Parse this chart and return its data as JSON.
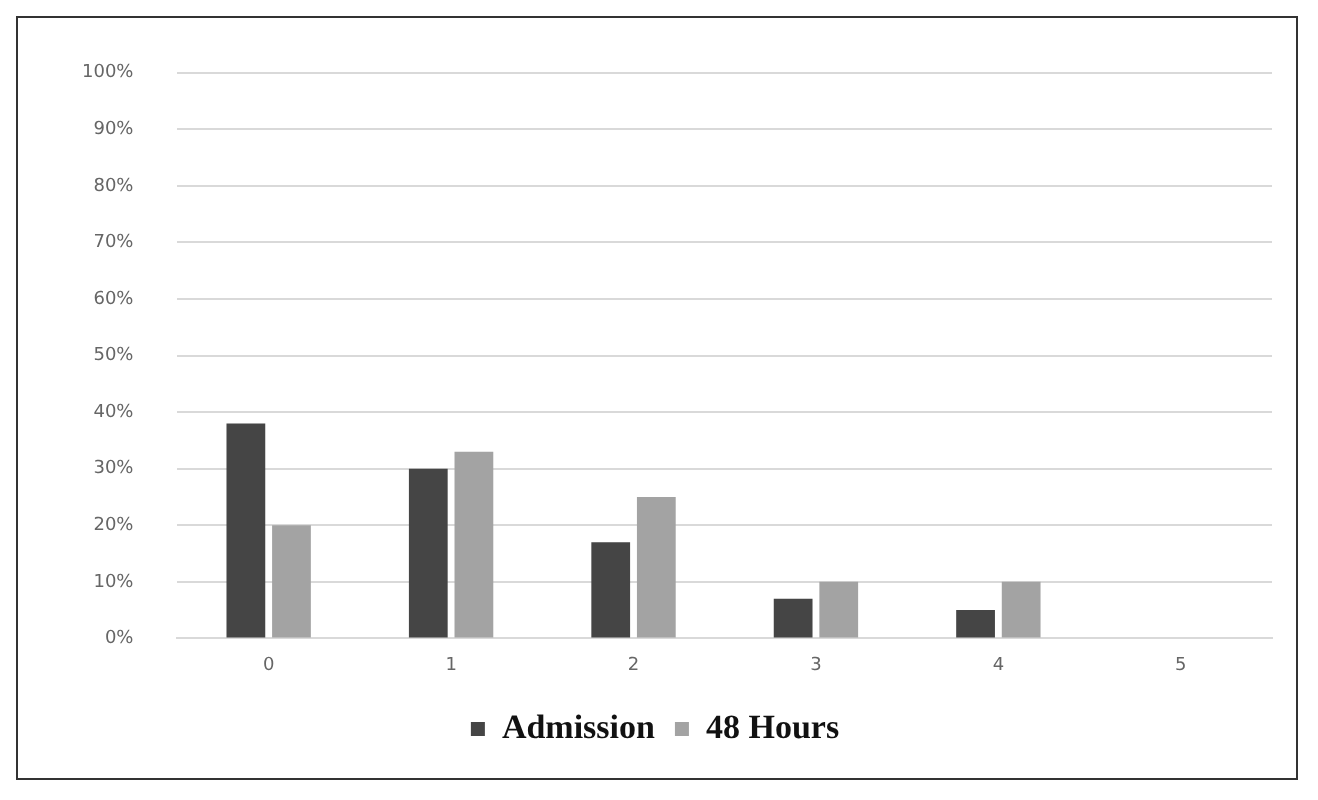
{
  "chart_data": {
    "type": "bar",
    "categories": [
      "0",
      "1",
      "2",
      "3",
      "4",
      "5"
    ],
    "series": [
      {
        "name": "Admission",
        "color": "#454545",
        "values": [
          38,
          30,
          17,
          7,
          5,
          0
        ]
      },
      {
        "name": "48 Hours",
        "color": "#a3a3a3",
        "values": [
          20,
          33,
          25,
          10,
          10,
          0
        ]
      }
    ],
    "ylim": [
      0,
      100
    ],
    "yticks": [
      {
        "value": 0,
        "label": "0%"
      },
      {
        "value": 10,
        "label": "10%"
      },
      {
        "value": 20,
        "label": "20%"
      },
      {
        "value": 30,
        "label": "30%"
      },
      {
        "value": 40,
        "label": "40%"
      },
      {
        "value": 50,
        "label": "50%"
      },
      {
        "value": 60,
        "label": "60%"
      },
      {
        "value": 70,
        "label": "70%"
      },
      {
        "value": 80,
        "label": "80%"
      },
      {
        "value": 90,
        "label": "90%"
      },
      {
        "value": 100,
        "label": "100%"
      }
    ],
    "grid": "y",
    "legend": "bottom"
  }
}
